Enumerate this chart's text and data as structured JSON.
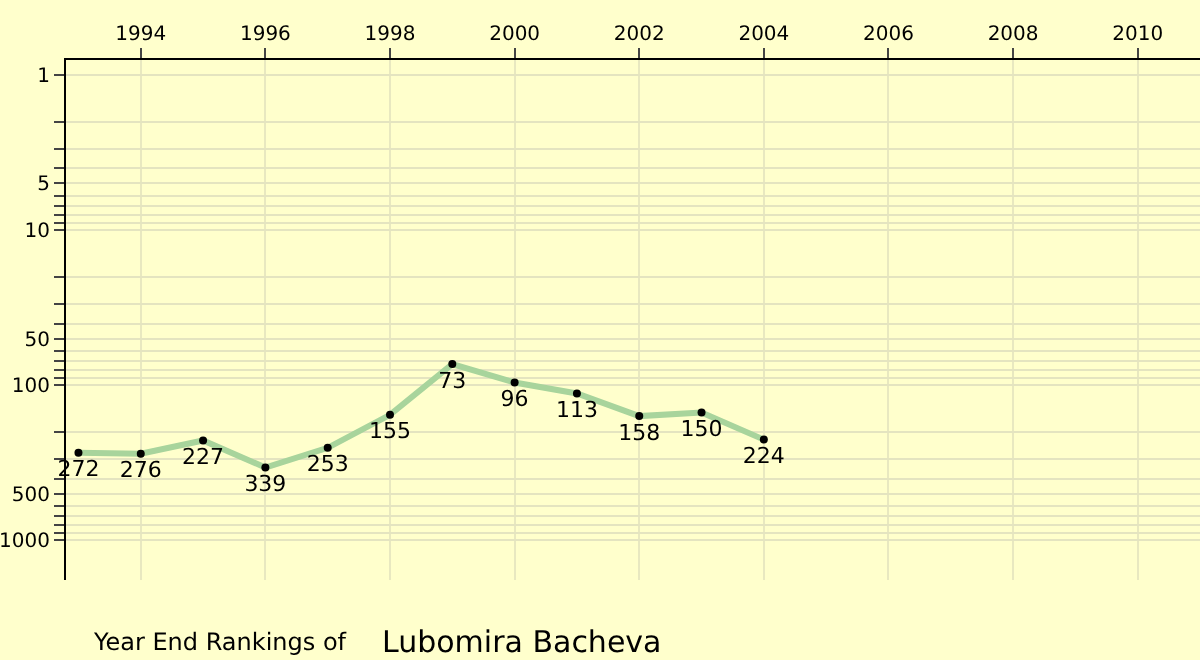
{
  "chart_data": {
    "type": "line",
    "title": "Year End Rankings of",
    "subtitle": "Lubomira Bacheva",
    "x": [
      1993,
      1994,
      1995,
      1996,
      1997,
      1998,
      1999,
      2000,
      2001,
      2002,
      2003,
      2004
    ],
    "series": [
      {
        "color": "#a8d49c",
        "values": [
          272,
          276,
          227,
          339,
          253,
          155,
          73,
          96,
          113,
          158,
          150,
          224
        ]
      }
    ],
    "xlim": [
      1992.8,
      2011
    ],
    "xticks": [
      1994,
      1996,
      1998,
      2000,
      2002,
      2004,
      2006,
      2008,
      2010
    ],
    "ylim": [
      1800,
      0.8
    ],
    "log": true,
    "yticks": [
      1,
      {
        "value": 2,
        "label": null
      },
      {
        "value": 3,
        "label": null
      },
      {
        "value": 4,
        "label": null
      },
      5,
      {
        "value": 6,
        "label": null
      },
      {
        "value": 7,
        "label": null
      },
      {
        "value": 8,
        "label": null
      },
      {
        "value": 9,
        "label": null
      },
      10,
      {
        "value": 20,
        "label": null
      },
      {
        "value": 30,
        "label": null
      },
      {
        "value": 40,
        "label": null
      },
      50,
      {
        "value": 60,
        "label": null
      },
      {
        "value": 70,
        "label": null
      },
      {
        "value": 80,
        "label": null
      },
      {
        "value": 90,
        "label": null
      },
      100,
      {
        "value": 200,
        "label": null
      },
      {
        "value": 300,
        "label": null
      },
      {
        "value": 400,
        "label": null
      },
      500,
      {
        "value": 600,
        "label": null
      },
      {
        "value": 700,
        "label": null
      },
      {
        "value": 800,
        "label": null
      },
      {
        "value": 900,
        "label": null
      },
      1000
    ],
    "grid": true,
    "marker": "circle",
    "line_style": "solid",
    "data_labels": true
  }
}
